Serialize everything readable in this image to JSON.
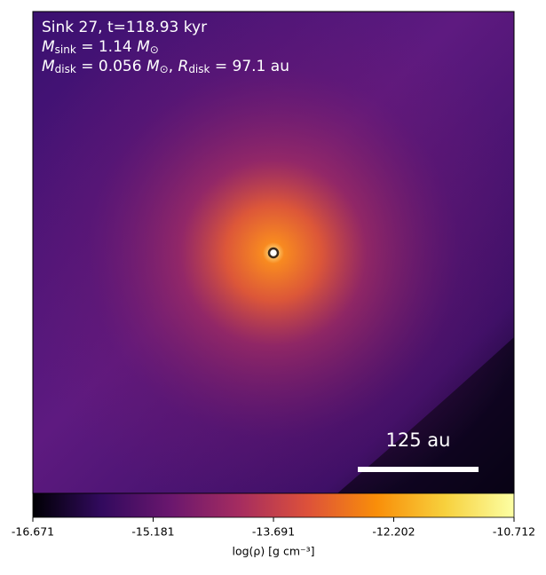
{
  "chart_data": {
    "type": "heatmap",
    "annotations": [
      [
        {
          "text": "Sink 27, t=118.93 kyr"
        }
      ],
      [
        {
          "text": "M",
          "italic": true
        },
        {
          "text": "sink",
          "sub": true
        },
        {
          "text": " = 1.14 "
        },
        {
          "text": "M",
          "italic": true
        },
        {
          "text": "⊙",
          "sub": true
        }
      ],
      [
        {
          "text": "M",
          "italic": true
        },
        {
          "text": "disk",
          "sub": true
        },
        {
          "text": " = 0.056 "
        },
        {
          "text": "M",
          "italic": true
        },
        {
          "text": "⊙",
          "sub": true
        },
        {
          "text": ", "
        },
        {
          "text": "R",
          "italic": true
        },
        {
          "text": "disk",
          "sub": true
        },
        {
          "text": " = 97.1 au"
        }
      ]
    ],
    "scale_bar": "125 au",
    "colorbar": {
      "label": "log(ρ) [g cm⁻³]",
      "lim": [
        -16.671,
        -10.712
      ],
      "ticks": [
        -16.671,
        -15.181,
        -13.691,
        -12.202,
        -10.712
      ],
      "colormap": [
        "#000004",
        "#320a5e",
        "#6a176e",
        "#a52c60",
        "#dd513a",
        "#f98e09",
        "#f7d13d",
        "#fcffa4"
      ]
    }
  }
}
